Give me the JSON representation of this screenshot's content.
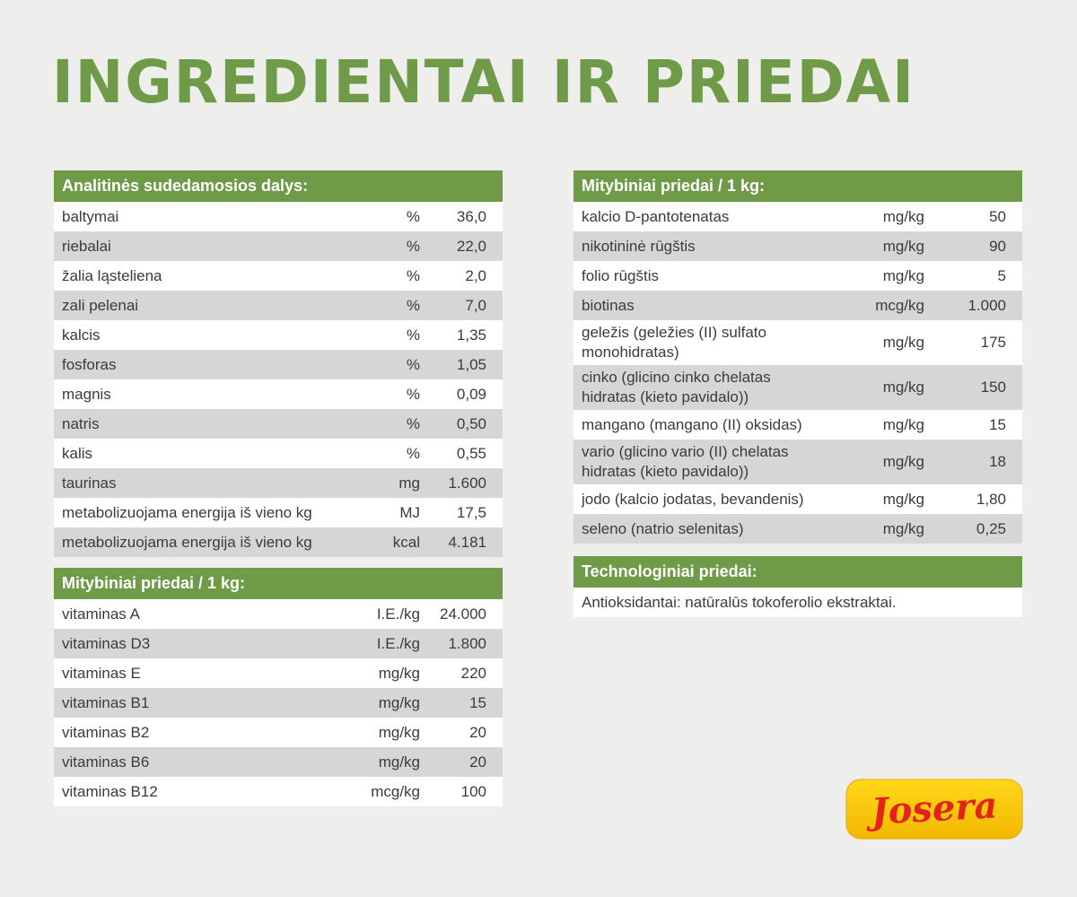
{
  "title": "INGREDIENTAI IR PRIEDAI",
  "analytical": {
    "header": "Analitinės sudedamosios dalys:",
    "rows": [
      {
        "name": "baltymai",
        "unit": "%",
        "value": "36,0"
      },
      {
        "name": "riebalai",
        "unit": "%",
        "value": "22,0"
      },
      {
        "name": "žalia ląsteliena",
        "unit": "%",
        "value": "2,0"
      },
      {
        "name": "zali pelenai",
        "unit": "%",
        "value": "7,0"
      },
      {
        "name": "kalcis",
        "unit": "%",
        "value": "1,35"
      },
      {
        "name": "fosforas",
        "unit": "%",
        "value": "1,05"
      },
      {
        "name": "magnis",
        "unit": "%",
        "value": "0,09"
      },
      {
        "name": "natris",
        "unit": "%",
        "value": "0,50"
      },
      {
        "name": "kalis",
        "unit": "%",
        "value": "0,55"
      },
      {
        "name": "taurinas",
        "unit": "mg",
        "value": "1.600"
      },
      {
        "name": "metabolizuojama energija iš vieno kg",
        "unit": "MJ",
        "value": "17,5"
      },
      {
        "name": "metabolizuojama energija iš vieno kg",
        "unit": "kcal",
        "value": "4.181"
      }
    ]
  },
  "vitamins": {
    "header": "Mitybiniai priedai / 1 kg:",
    "rows": [
      {
        "name": "vitaminas A",
        "unit": "I.E./kg",
        "value": "24.000"
      },
      {
        "name": "vitaminas D3",
        "unit": "I.E./kg",
        "value": "1.800"
      },
      {
        "name": "vitaminas E",
        "unit": "mg/kg",
        "value": "220"
      },
      {
        "name": "vitaminas B1",
        "unit": "mg/kg",
        "value": "15"
      },
      {
        "name": "vitaminas B2",
        "unit": "mg/kg",
        "value": "20"
      },
      {
        "name": "vitaminas B6",
        "unit": "mg/kg",
        "value": "20"
      },
      {
        "name": "vitaminas B12",
        "unit": "mcg/kg",
        "value": "100"
      }
    ]
  },
  "minerals": {
    "header": "Mitybiniai priedai / 1 kg:",
    "rows": [
      {
        "name": "kalcio D-pantotenatas",
        "unit": "mg/kg",
        "value": "50",
        "tall": false
      },
      {
        "name": "nikotininė rūgštis",
        "unit": "mg/kg",
        "value": "90",
        "tall": false
      },
      {
        "name": "folio rūgštis",
        "unit": "mg/kg",
        "value": "5",
        "tall": false
      },
      {
        "name": "biotinas",
        "unit": "mcg/kg",
        "value": "1.000",
        "tall": false
      },
      {
        "name": "geležis (geležies (II) sulfato monohidratas)",
        "unit": "mg/kg",
        "value": "175",
        "tall": true
      },
      {
        "name": "cinko (glicino cinko chelatas hidratas (kieto pavidalo))",
        "unit": "mg/kg",
        "value": "150",
        "tall": true
      },
      {
        "name": "mangano (mangano (II) oksidas)",
        "unit": "mg/kg",
        "value": "15",
        "tall": false
      },
      {
        "name": "vario (glicino vario (II) chelatas hidratas (kieto pavidalo))",
        "unit": "mg/kg",
        "value": "18",
        "tall": true
      },
      {
        "name": "jodo (kalcio jodatas, bevandenis)",
        "unit": "mg/kg",
        "value": "1,80",
        "tall": false
      },
      {
        "name": "seleno (natrio selenitas)",
        "unit": "mg/kg",
        "value": "0,25",
        "tall": false
      }
    ]
  },
  "technological": {
    "header": "Technologiniai priedai:",
    "text": "Antioksidantai: natūralūs tokoferolio ekstraktai."
  },
  "logo": {
    "text": "Josera",
    "bg_color": "#f6c800",
    "text_color": "#e2231a"
  },
  "colors": {
    "accent": "#6f9a47",
    "background": "#eeeeec",
    "row_alt": "#d6d6d4",
    "text": "#3b3b3b"
  }
}
